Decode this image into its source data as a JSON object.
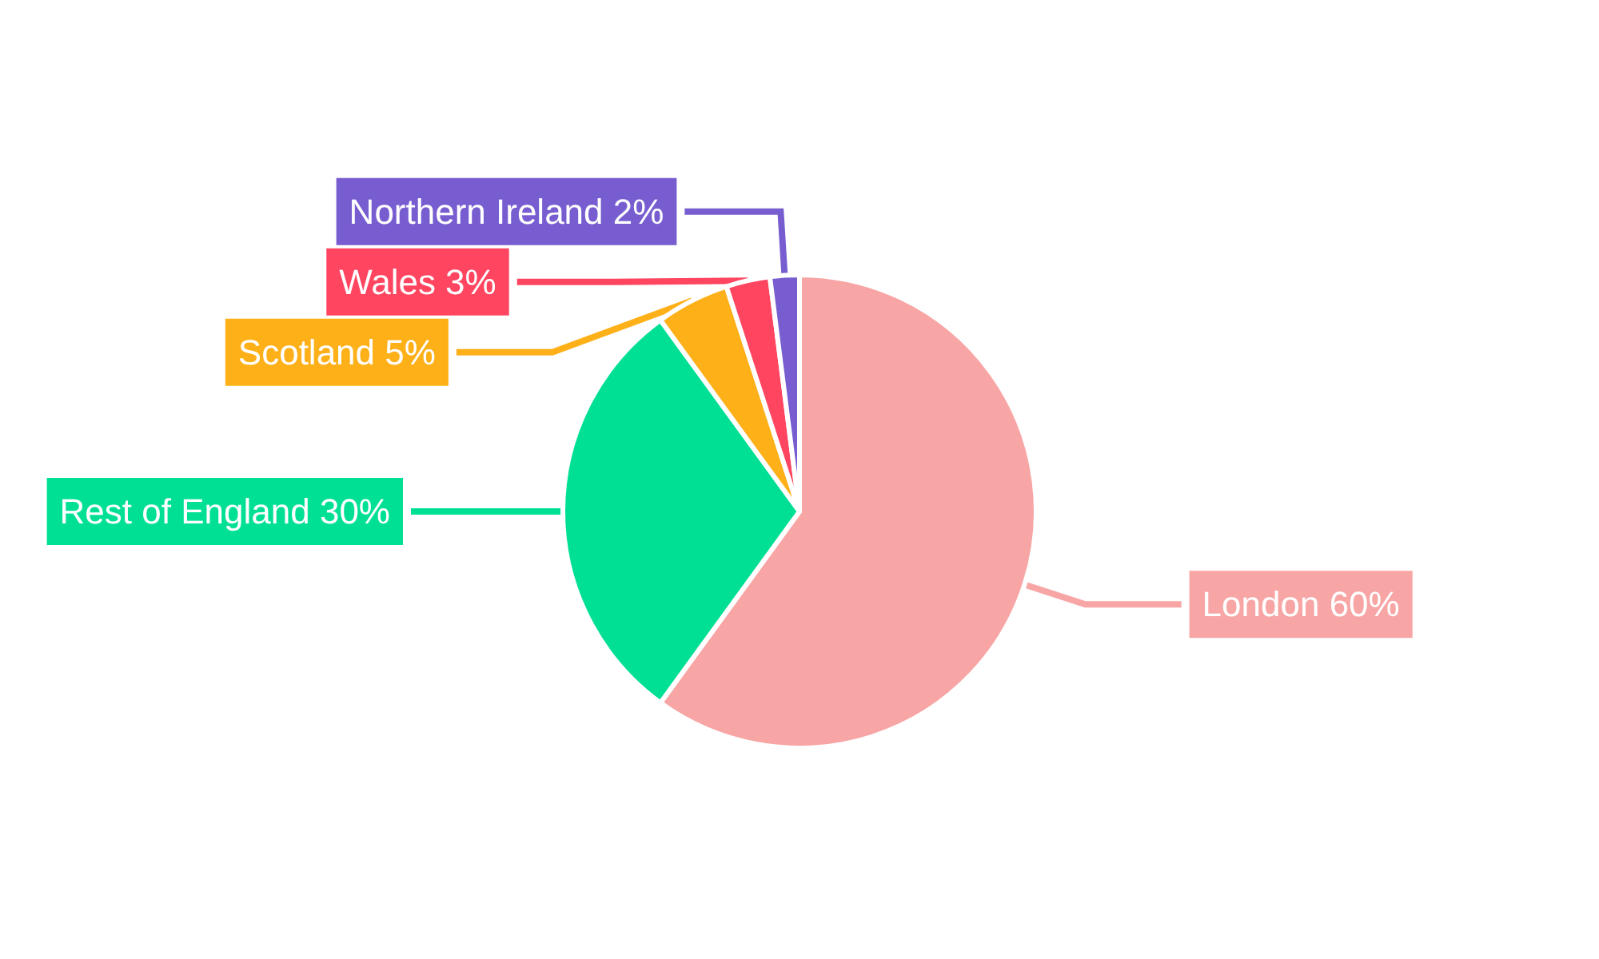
{
  "chart_data": {
    "type": "pie",
    "categories": [
      "London",
      "Rest of England",
      "Scotland",
      "Wales",
      "Northern Ireland"
    ],
    "values": [
      60,
      30,
      5,
      3,
      2
    ],
    "value_labels": [
      "60%",
      "30%",
      "5%",
      "3%",
      "2%"
    ],
    "colors": [
      "#f8a5a5",
      "#00e094",
      "#feb019",
      "#ff4560",
      "#775dd0"
    ]
  }
}
